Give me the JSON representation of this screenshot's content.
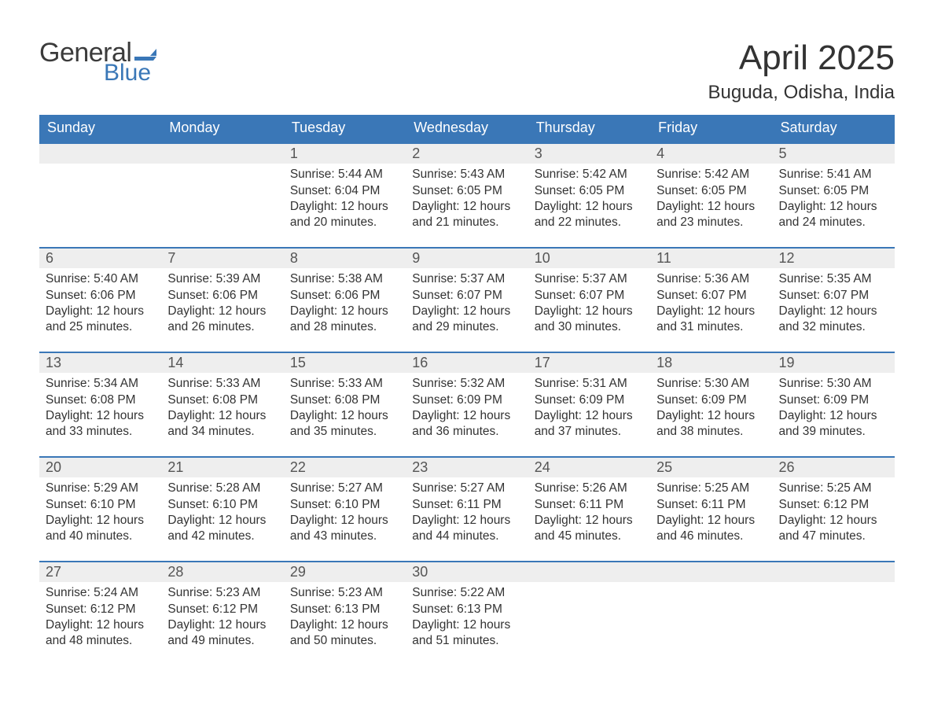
{
  "logo": {
    "word1": "General",
    "word2": "Blue",
    "flag_color": "#3a77b7"
  },
  "title": "April 2025",
  "location": "Buguda, Odisha, India",
  "colors": {
    "header_bg": "#3a77b7",
    "header_text": "#ffffff",
    "dayhead_bg": "#eeeeee",
    "dayhead_border": "#3a77b7",
    "text": "#333333",
    "page_bg": "#ffffff"
  },
  "weekdays": [
    "Sunday",
    "Monday",
    "Tuesday",
    "Wednesday",
    "Thursday",
    "Friday",
    "Saturday"
  ],
  "labels": {
    "sunrise_prefix": "Sunrise: ",
    "sunset_prefix": "Sunset: ",
    "daylight_prefix": "Daylight: ",
    "hours_word": " hours",
    "and_word": "and ",
    "minutes_word": " minutes."
  },
  "weeks": [
    [
      null,
      null,
      {
        "n": "1",
        "sunrise": "5:44 AM",
        "sunset": "6:04 PM",
        "dl_h": "12",
        "dl_m": "20"
      },
      {
        "n": "2",
        "sunrise": "5:43 AM",
        "sunset": "6:05 PM",
        "dl_h": "12",
        "dl_m": "21"
      },
      {
        "n": "3",
        "sunrise": "5:42 AM",
        "sunset": "6:05 PM",
        "dl_h": "12",
        "dl_m": "22"
      },
      {
        "n": "4",
        "sunrise": "5:42 AM",
        "sunset": "6:05 PM",
        "dl_h": "12",
        "dl_m": "23"
      },
      {
        "n": "5",
        "sunrise": "5:41 AM",
        "sunset": "6:05 PM",
        "dl_h": "12",
        "dl_m": "24"
      }
    ],
    [
      {
        "n": "6",
        "sunrise": "5:40 AM",
        "sunset": "6:06 PM",
        "dl_h": "12",
        "dl_m": "25"
      },
      {
        "n": "7",
        "sunrise": "5:39 AM",
        "sunset": "6:06 PM",
        "dl_h": "12",
        "dl_m": "26"
      },
      {
        "n": "8",
        "sunrise": "5:38 AM",
        "sunset": "6:06 PM",
        "dl_h": "12",
        "dl_m": "28"
      },
      {
        "n": "9",
        "sunrise": "5:37 AM",
        "sunset": "6:07 PM",
        "dl_h": "12",
        "dl_m": "29"
      },
      {
        "n": "10",
        "sunrise": "5:37 AM",
        "sunset": "6:07 PM",
        "dl_h": "12",
        "dl_m": "30"
      },
      {
        "n": "11",
        "sunrise": "5:36 AM",
        "sunset": "6:07 PM",
        "dl_h": "12",
        "dl_m": "31"
      },
      {
        "n": "12",
        "sunrise": "5:35 AM",
        "sunset": "6:07 PM",
        "dl_h": "12",
        "dl_m": "32"
      }
    ],
    [
      {
        "n": "13",
        "sunrise": "5:34 AM",
        "sunset": "6:08 PM",
        "dl_h": "12",
        "dl_m": "33"
      },
      {
        "n": "14",
        "sunrise": "5:33 AM",
        "sunset": "6:08 PM",
        "dl_h": "12",
        "dl_m": "34"
      },
      {
        "n": "15",
        "sunrise": "5:33 AM",
        "sunset": "6:08 PM",
        "dl_h": "12",
        "dl_m": "35"
      },
      {
        "n": "16",
        "sunrise": "5:32 AM",
        "sunset": "6:09 PM",
        "dl_h": "12",
        "dl_m": "36"
      },
      {
        "n": "17",
        "sunrise": "5:31 AM",
        "sunset": "6:09 PM",
        "dl_h": "12",
        "dl_m": "37"
      },
      {
        "n": "18",
        "sunrise": "5:30 AM",
        "sunset": "6:09 PM",
        "dl_h": "12",
        "dl_m": "38"
      },
      {
        "n": "19",
        "sunrise": "5:30 AM",
        "sunset": "6:09 PM",
        "dl_h": "12",
        "dl_m": "39"
      }
    ],
    [
      {
        "n": "20",
        "sunrise": "5:29 AM",
        "sunset": "6:10 PM",
        "dl_h": "12",
        "dl_m": "40"
      },
      {
        "n": "21",
        "sunrise": "5:28 AM",
        "sunset": "6:10 PM",
        "dl_h": "12",
        "dl_m": "42"
      },
      {
        "n": "22",
        "sunrise": "5:27 AM",
        "sunset": "6:10 PM",
        "dl_h": "12",
        "dl_m": "43"
      },
      {
        "n": "23",
        "sunrise": "5:27 AM",
        "sunset": "6:11 PM",
        "dl_h": "12",
        "dl_m": "44"
      },
      {
        "n": "24",
        "sunrise": "5:26 AM",
        "sunset": "6:11 PM",
        "dl_h": "12",
        "dl_m": "45"
      },
      {
        "n": "25",
        "sunrise": "5:25 AM",
        "sunset": "6:11 PM",
        "dl_h": "12",
        "dl_m": "46"
      },
      {
        "n": "26",
        "sunrise": "5:25 AM",
        "sunset": "6:12 PM",
        "dl_h": "12",
        "dl_m": "47"
      }
    ],
    [
      {
        "n": "27",
        "sunrise": "5:24 AM",
        "sunset": "6:12 PM",
        "dl_h": "12",
        "dl_m": "48"
      },
      {
        "n": "28",
        "sunrise": "5:23 AM",
        "sunset": "6:12 PM",
        "dl_h": "12",
        "dl_m": "49"
      },
      {
        "n": "29",
        "sunrise": "5:23 AM",
        "sunset": "6:13 PM",
        "dl_h": "12",
        "dl_m": "50"
      },
      {
        "n": "30",
        "sunrise": "5:22 AM",
        "sunset": "6:13 PM",
        "dl_h": "12",
        "dl_m": "51"
      },
      null,
      null,
      null
    ]
  ]
}
